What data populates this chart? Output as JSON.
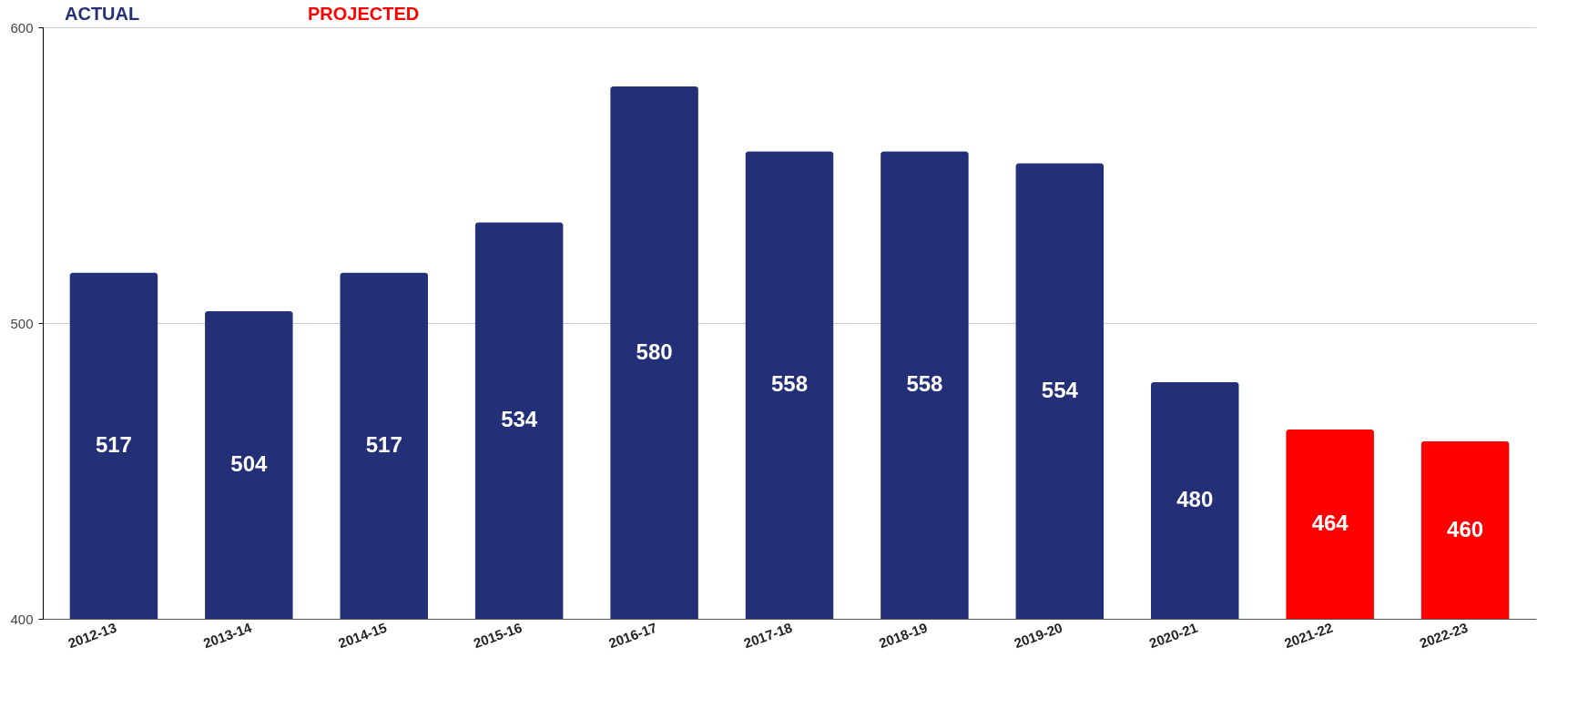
{
  "chart_data": {
    "type": "bar",
    "categories": [
      "2012-13",
      "2013-14",
      "2014-15",
      "2015-16",
      "2016-17",
      "2017-18",
      "2018-19",
      "2019-20",
      "2020-21",
      "2021-22",
      "2022-23"
    ],
    "series": [
      {
        "name": "ACTUAL",
        "color": "#233077",
        "values": [
          517,
          504,
          517,
          534,
          580,
          558,
          558,
          554,
          480,
          null,
          null
        ]
      },
      {
        "name": "PROJECTED",
        "color": "#ff0000",
        "values": [
          null,
          null,
          null,
          null,
          null,
          null,
          null,
          null,
          null,
          464,
          460
        ]
      }
    ],
    "ylim": [
      400,
      600
    ],
    "yticks": [
      400,
      500,
      600
    ],
    "grid": "y",
    "legend": "top",
    "data_labels": true
  }
}
